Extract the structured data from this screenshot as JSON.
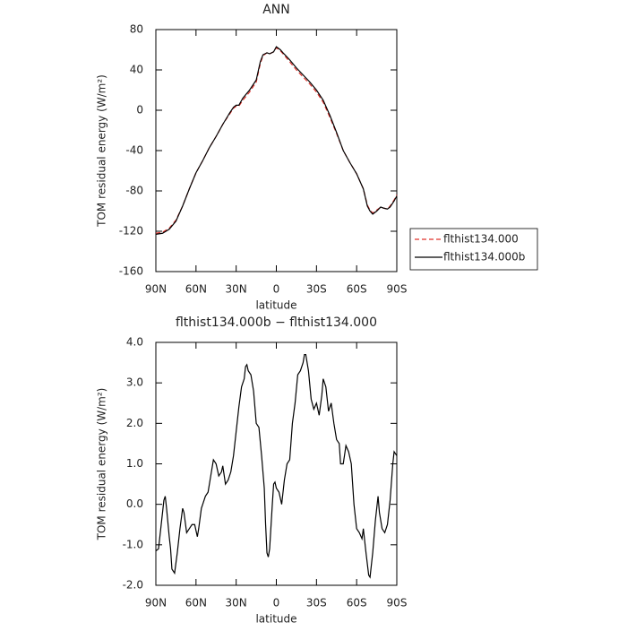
{
  "chart_data": [
    {
      "type": "line",
      "title": "ANN",
      "x_label": "latitude",
      "y_label": "TOM residual energy (W/m²)",
      "x": [
        90,
        85,
        80,
        75,
        70,
        65,
        60,
        55,
        50,
        45,
        40,
        35,
        32,
        30,
        28,
        25,
        20,
        15,
        12,
        10,
        7,
        5,
        2,
        0,
        -3,
        -5,
        -10,
        -15,
        -20,
        -25,
        -30,
        -35,
        -40,
        -45,
        -50,
        -55,
        -60,
        -65,
        -68,
        -70,
        -72,
        -75,
        -78,
        -80,
        -83,
        -85,
        -88,
        -90
      ],
      "series": [
        {
          "name": "flthist134.000",
          "color": "#e0302a",
          "dash": "dashed",
          "values": [
            -122,
            -121,
            -117,
            -109,
            -95,
            -78,
            -62,
            -50,
            -37,
            -26,
            -14,
            -4,
            2,
            4,
            4,
            10,
            18,
            28,
            46,
            54,
            57,
            56,
            58,
            62,
            59,
            56,
            48,
            40,
            33,
            26,
            18,
            8,
            -7,
            -23,
            -40,
            -52,
            -63,
            -78,
            -94,
            -99,
            -102,
            -99,
            -96,
            -97,
            -98,
            -95,
            -89,
            -84
          ]
        },
        {
          "name": "flthist134.000b",
          "color": "#000000",
          "dash": "solid",
          "values": [
            -123,
            -122,
            -118,
            -110,
            -95,
            -78,
            -62,
            -50,
            -37,
            -26,
            -14,
            -3,
            3,
            5,
            5,
            12,
            20,
            30,
            48,
            55,
            57,
            56,
            58,
            63,
            60,
            57,
            50,
            42,
            35,
            28,
            20,
            10,
            -5,
            -22,
            -40,
            -52,
            -63,
            -78,
            -95,
            -100,
            -103,
            -100,
            -96,
            -97,
            -98,
            -96,
            -90,
            -85
          ]
        }
      ],
      "xlim": [
        90,
        -90
      ],
      "xticks": [
        {
          "value": 90,
          "label": "90N"
        },
        {
          "value": 60,
          "label": "60N"
        },
        {
          "value": 30,
          "label": "30N"
        },
        0,
        {
          "value": -30,
          "label": "30S"
        },
        {
          "value": -60,
          "label": "60S"
        },
        {
          "value": -90,
          "label": "90S"
        }
      ],
      "ylim": [
        -160,
        80
      ],
      "yticks": [
        -160,
        -120,
        -80,
        -40,
        0,
        40,
        80
      ],
      "legend": "right"
    },
    {
      "type": "line",
      "title": "flthist134.000b − flthist134.000",
      "x_label": "latitude",
      "y_label": "TOM residual energy (W/m²)",
      "x": [
        90,
        88,
        86,
        84,
        83,
        82,
        80,
        79,
        78,
        76,
        74,
        72,
        70,
        69,
        67,
        65,
        63,
        61,
        59,
        58,
        56,
        55,
        53,
        51,
        49,
        47,
        45,
        43,
        41,
        40,
        38,
        36,
        34,
        32,
        30,
        28,
        26,
        24,
        23,
        22,
        21,
        19,
        17,
        15,
        13,
        11,
        9,
        8,
        7,
        6,
        5,
        3,
        2,
        1,
        0,
        -2,
        -4,
        -6,
        -8,
        -10,
        -12,
        -14,
        -16,
        -18,
        -20,
        -21,
        -22,
        -24,
        -26,
        -28,
        -30,
        -32,
        -34,
        -35,
        -37,
        -39,
        -41,
        -43,
        -45,
        -47,
        -48,
        -50,
        -52,
        -54,
        -56,
        -58,
        -60,
        -62,
        -64,
        -65,
        -67,
        -69,
        -70,
        -72,
        -74,
        -76,
        -77,
        -79,
        -81,
        -83,
        -85,
        -87,
        -88,
        -90
      ],
      "series": [
        {
          "name": "flthist134.000b − flthist134.000",
          "color": "#000000",
          "dash": "solid",
          "values": [
            -1.15,
            -1.1,
            -0.5,
            0.1,
            0.2,
            -0.1,
            -0.8,
            -1.1,
            -1.6,
            -1.7,
            -1.2,
            -0.6,
            -0.1,
            -0.2,
            -0.7,
            -0.6,
            -0.5,
            -0.5,
            -0.8,
            -0.6,
            -0.1,
            0.0,
            0.2,
            0.3,
            0.7,
            1.1,
            1.0,
            0.7,
            0.8,
            0.95,
            0.5,
            0.6,
            0.8,
            1.2,
            1.8,
            2.4,
            2.9,
            3.1,
            3.4,
            3.45,
            3.3,
            3.2,
            2.8,
            2.0,
            1.9,
            1.2,
            0.4,
            -0.5,
            -1.2,
            -1.3,
            -1.1,
            0.0,
            0.5,
            0.55,
            0.4,
            0.3,
            0.0,
            0.6,
            1.0,
            1.1,
            2.0,
            2.5,
            3.2,
            3.3,
            3.5,
            3.7,
            3.7,
            3.3,
            2.6,
            2.35,
            2.5,
            2.2,
            2.7,
            3.1,
            2.9,
            2.3,
            2.5,
            2.0,
            1.6,
            1.5,
            1.0,
            1.0,
            1.45,
            1.3,
            1.0,
            0.0,
            -0.6,
            -0.7,
            -0.85,
            -0.6,
            -1.2,
            -1.75,
            -1.8,
            -1.2,
            -0.4,
            0.2,
            -0.2,
            -0.6,
            -0.7,
            -0.5,
            0.1,
            1.0,
            1.3,
            1.2
          ]
        }
      ],
      "xlim": [
        90,
        -90
      ],
      "xticks": [
        {
          "value": 90,
          "label": "90N"
        },
        {
          "value": 60,
          "label": "60N"
        },
        {
          "value": 30,
          "label": "30N"
        },
        0,
        {
          "value": -30,
          "label": "30S"
        },
        {
          "value": -60,
          "label": "60S"
        },
        {
          "value": -90,
          "label": "90S"
        }
      ],
      "ylim": [
        -2,
        4
      ],
      "yticks": [
        {
          "value": -2,
          "label": "-2.0"
        },
        {
          "value": -1,
          "label": "-1.0"
        },
        {
          "value": 0,
          "label": "0.0"
        },
        {
          "value": 1,
          "label": "1.0"
        },
        {
          "value": 2,
          "label": "2.0"
        },
        {
          "value": 3,
          "label": "3.0"
        },
        {
          "value": 4,
          "label": "4.0"
        }
      ]
    }
  ]
}
